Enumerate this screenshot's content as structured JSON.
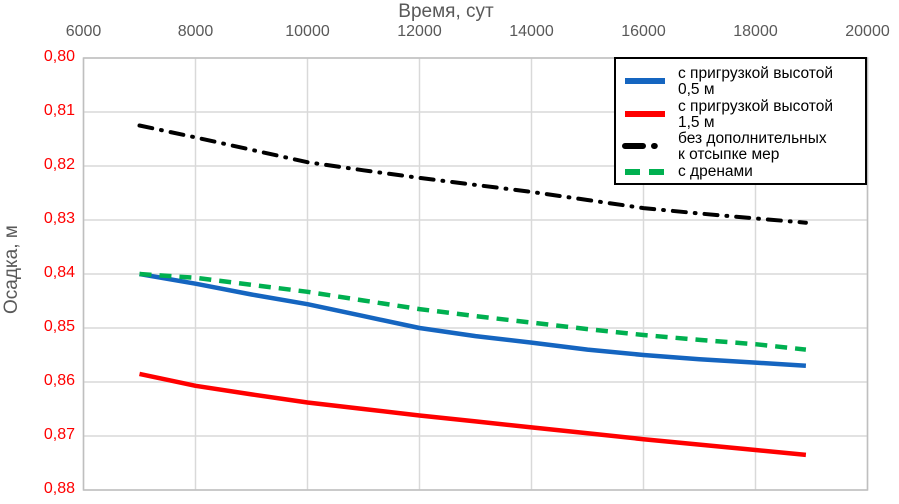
{
  "chart_data": {
    "type": "line",
    "title": "",
    "xlabel": "Время, сут",
    "ylabel": "Осадка, м",
    "x_range": [
      6000,
      20000
    ],
    "y_range": [
      0.8,
      0.88
    ],
    "y_axis_inverted": true,
    "y_axis_side": "left",
    "x_axis_side": "top",
    "grid": true,
    "legend_position": "top-right",
    "colors": {
      "grid": "#d9d9d9",
      "plot_border": "#bfbfbf",
      "x_tick_labels": "#595959",
      "y_tick_labels": "#ff0000",
      "axis_titles": "#595959",
      "legend_border": "#000000"
    },
    "x_ticks": [
      {
        "v": 6000,
        "label": "6000"
      },
      {
        "v": 8000,
        "label": "8000"
      },
      {
        "v": 10000,
        "label": "10000"
      },
      {
        "v": 12000,
        "label": "12000"
      },
      {
        "v": 14000,
        "label": "14000"
      },
      {
        "v": 16000,
        "label": "16000"
      },
      {
        "v": 18000,
        "label": "18000"
      },
      {
        "v": 20000,
        "label": "20000"
      }
    ],
    "y_ticks": [
      {
        "v": 0.8,
        "label": "0,80"
      },
      {
        "v": 0.81,
        "label": "0,81"
      },
      {
        "v": 0.82,
        "label": "0,82"
      },
      {
        "v": 0.83,
        "label": "0,83"
      },
      {
        "v": 0.84,
        "label": "0,84"
      },
      {
        "v": 0.85,
        "label": "0,85"
      },
      {
        "v": 0.86,
        "label": "0,86"
      },
      {
        "v": 0.87,
        "label": "0,87"
      },
      {
        "v": 0.88,
        "label": "0,88"
      }
    ],
    "series": [
      {
        "name": "с пригрузкой высотой 0,5 м",
        "color": "#1565c0",
        "style": "solid",
        "points": [
          [
            7000,
            0.84
          ],
          [
            8000,
            0.8418
          ],
          [
            9000,
            0.8438
          ],
          [
            10000,
            0.8456
          ],
          [
            11000,
            0.8478
          ],
          [
            12000,
            0.85
          ],
          [
            13000,
            0.8515
          ],
          [
            14000,
            0.8527
          ],
          [
            15000,
            0.854
          ],
          [
            16000,
            0.855
          ],
          [
            17000,
            0.8558
          ],
          [
            18000,
            0.8564
          ],
          [
            18900,
            0.857
          ]
        ]
      },
      {
        "name": "с пригрузкой высотой 1,5 м",
        "color": "#ff0000",
        "style": "solid",
        "points": [
          [
            7000,
            0.8585
          ],
          [
            8000,
            0.8607
          ],
          [
            9000,
            0.8623
          ],
          [
            10000,
            0.8638
          ],
          [
            11000,
            0.865
          ],
          [
            12000,
            0.8662
          ],
          [
            13000,
            0.8673
          ],
          [
            14000,
            0.8684
          ],
          [
            15000,
            0.8695
          ],
          [
            16000,
            0.8706
          ],
          [
            17000,
            0.8716
          ],
          [
            18000,
            0.8726
          ],
          [
            18900,
            0.8735
          ]
        ]
      },
      {
        "name": "без дополнительных\nк отсыпке мер",
        "color": "#000000",
        "style": "dashdot",
        "points": [
          [
            7000,
            0.8125
          ],
          [
            8000,
            0.8147
          ],
          [
            9000,
            0.817
          ],
          [
            10000,
            0.8193
          ],
          [
            11000,
            0.8208
          ],
          [
            12000,
            0.8222
          ],
          [
            13000,
            0.8235
          ],
          [
            14000,
            0.8248
          ],
          [
            15000,
            0.8263
          ],
          [
            16000,
            0.8278
          ],
          [
            17000,
            0.8288
          ],
          [
            18000,
            0.8297
          ],
          [
            18900,
            0.8305
          ]
        ]
      },
      {
        "name": "с дренами",
        "color": "#00b050",
        "style": "dashed",
        "points": [
          [
            7000,
            0.84
          ],
          [
            8000,
            0.8407
          ],
          [
            9000,
            0.842
          ],
          [
            10000,
            0.8433
          ],
          [
            11000,
            0.8449
          ],
          [
            12000,
            0.8465
          ],
          [
            13000,
            0.8478
          ],
          [
            14000,
            0.849
          ],
          [
            15000,
            0.8502
          ],
          [
            16000,
            0.8513
          ],
          [
            17000,
            0.8522
          ],
          [
            18000,
            0.853
          ],
          [
            18900,
            0.854
          ]
        ]
      }
    ]
  }
}
